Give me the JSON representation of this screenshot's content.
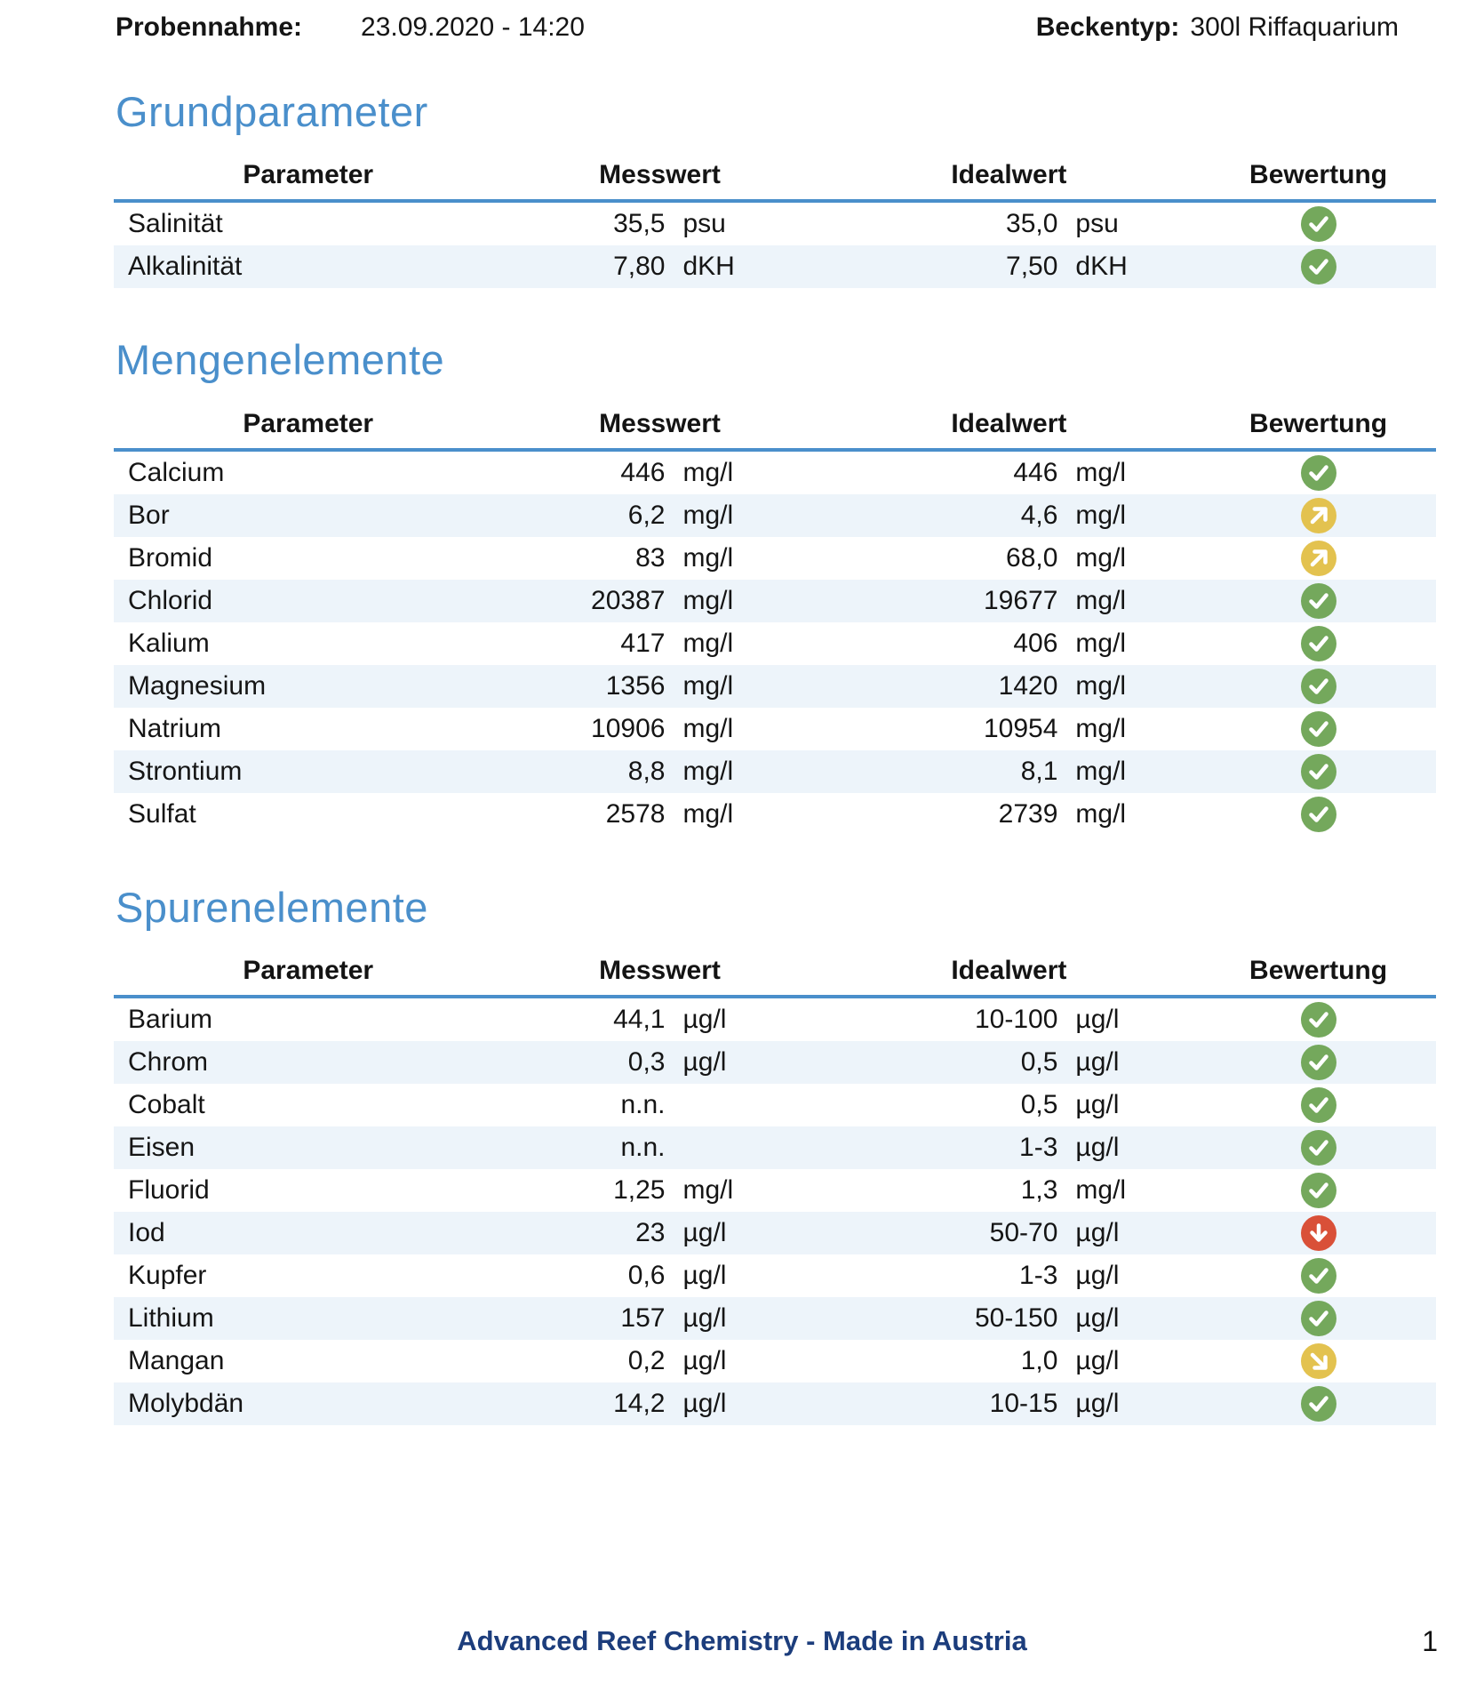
{
  "header": {
    "sample_label": "Probennahme:",
    "sample_value": "23.09.2020 - 14:20",
    "tank_label": "Beckentyp:",
    "tank_value": "300l Riffaquarium"
  },
  "columns": {
    "parameter": "Parameter",
    "messwert": "Messwert",
    "idealwert": "Idealwert",
    "bewertung": "Bewertung"
  },
  "ratings": {
    "ok": {
      "icon": "check",
      "color": "#74a85c"
    },
    "too_high": {
      "icon": "arrow-up-right",
      "color": "#e3c24f"
    },
    "slightly_low": {
      "icon": "arrow-down-right",
      "color": "#e3c24f"
    },
    "too_low": {
      "icon": "arrow-down",
      "color": "#d95038"
    }
  },
  "colors": {
    "heading_blue": "#4a8fcb",
    "header_rule_blue": "#4a8fcb",
    "row_stripe": "#edf4fa",
    "footer_navy": "#1c3d7c",
    "status_green": "#74a85c",
    "status_yellow": "#e3c24f",
    "status_red": "#d95038"
  },
  "sections": [
    {
      "title": "Grundparameter",
      "rows": [
        {
          "parameter": "Salinität",
          "messwert": "35,5",
          "messwert_unit": "psu",
          "idealwert": "35,0",
          "idealwert_unit": "psu",
          "bewertung": "ok"
        },
        {
          "parameter": "Alkalinität",
          "messwert": "7,80",
          "messwert_unit": "dKH",
          "idealwert": "7,50",
          "idealwert_unit": "dKH",
          "bewertung": "ok"
        }
      ]
    },
    {
      "title": "Mengenelemente",
      "rows": [
        {
          "parameter": "Calcium",
          "messwert": "446",
          "messwert_unit": "mg/l",
          "idealwert": "446",
          "idealwert_unit": "mg/l",
          "bewertung": "ok"
        },
        {
          "parameter": "Bor",
          "messwert": "6,2",
          "messwert_unit": "mg/l",
          "idealwert": "4,6",
          "idealwert_unit": "mg/l",
          "bewertung": "too_high"
        },
        {
          "parameter": "Bromid",
          "messwert": "83",
          "messwert_unit": "mg/l",
          "idealwert": "68,0",
          "idealwert_unit": "mg/l",
          "bewertung": "too_high"
        },
        {
          "parameter": "Chlorid",
          "messwert": "20387",
          "messwert_unit": "mg/l",
          "idealwert": "19677",
          "idealwert_unit": "mg/l",
          "bewertung": "ok"
        },
        {
          "parameter": "Kalium",
          "messwert": "417",
          "messwert_unit": "mg/l",
          "idealwert": "406",
          "idealwert_unit": "mg/l",
          "bewertung": "ok"
        },
        {
          "parameter": "Magnesium",
          "messwert": "1356",
          "messwert_unit": "mg/l",
          "idealwert": "1420",
          "idealwert_unit": "mg/l",
          "bewertung": "ok"
        },
        {
          "parameter": "Natrium",
          "messwert": "10906",
          "messwert_unit": "mg/l",
          "idealwert": "10954",
          "idealwert_unit": "mg/l",
          "bewertung": "ok"
        },
        {
          "parameter": "Strontium",
          "messwert": "8,8",
          "messwert_unit": "mg/l",
          "idealwert": "8,1",
          "idealwert_unit": "mg/l",
          "bewertung": "ok"
        },
        {
          "parameter": "Sulfat",
          "messwert": "2578",
          "messwert_unit": "mg/l",
          "idealwert": "2739",
          "idealwert_unit": "mg/l",
          "bewertung": "ok"
        }
      ]
    },
    {
      "title": "Spurenelemente",
      "rows": [
        {
          "parameter": "Barium",
          "messwert": "44,1",
          "messwert_unit": "µg/l",
          "idealwert": "10-100",
          "idealwert_unit": "µg/l",
          "bewertung": "ok"
        },
        {
          "parameter": "Chrom",
          "messwert": "0,3",
          "messwert_unit": "µg/l",
          "idealwert": "0,5",
          "idealwert_unit": "µg/l",
          "bewertung": "ok"
        },
        {
          "parameter": "Cobalt",
          "messwert": "n.n.",
          "messwert_unit": "",
          "idealwert": "0,5",
          "idealwert_unit": "µg/l",
          "bewertung": "ok"
        },
        {
          "parameter": "Eisen",
          "messwert": "n.n.",
          "messwert_unit": "",
          "idealwert": "1-3",
          "idealwert_unit": "µg/l",
          "bewertung": "ok"
        },
        {
          "parameter": "Fluorid",
          "messwert": "1,25",
          "messwert_unit": "mg/l",
          "idealwert": "1,3",
          "idealwert_unit": "mg/l",
          "bewertung": "ok"
        },
        {
          "parameter": "Iod",
          "messwert": "23",
          "messwert_unit": "µg/l",
          "idealwert": "50-70",
          "idealwert_unit": "µg/l",
          "bewertung": "too_low"
        },
        {
          "parameter": "Kupfer",
          "messwert": "0,6",
          "messwert_unit": "µg/l",
          "idealwert": "1-3",
          "idealwert_unit": "µg/l",
          "bewertung": "ok"
        },
        {
          "parameter": "Lithium",
          "messwert": "157",
          "messwert_unit": "µg/l",
          "idealwert": "50-150",
          "idealwert_unit": "µg/l",
          "bewertung": "ok"
        },
        {
          "parameter": "Mangan",
          "messwert": "0,2",
          "messwert_unit": "µg/l",
          "idealwert": "1,0",
          "idealwert_unit": "µg/l",
          "bewertung": "slightly_low"
        },
        {
          "parameter": "Molybdän",
          "messwert": "14,2",
          "messwert_unit": "µg/l",
          "idealwert": "10-15",
          "idealwert_unit": "µg/l",
          "bewertung": "ok"
        }
      ]
    }
  ],
  "footer": {
    "text": "Advanced Reef Chemistry - Made in Austria",
    "page_number": "1"
  }
}
